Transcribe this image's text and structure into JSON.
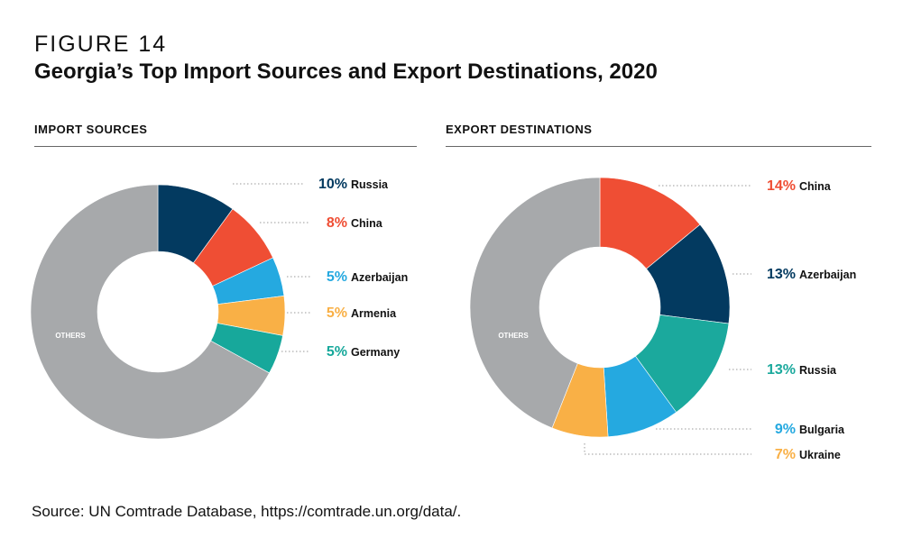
{
  "figure": {
    "label": "FIGURE 14",
    "title": "Georgia’s Top Import Sources and Export Destinations, 2020",
    "source": "Source: UN Comtrade Database, https://comtrade.un.org/data/."
  },
  "chart_data": [
    {
      "type": "pie",
      "variant": "donut",
      "title": "IMPORT SOURCES",
      "start": "top",
      "direction": "clockwise",
      "slices": [
        {
          "label": "Russia",
          "value": 10,
          "value_label": "10%",
          "color": "#033a60"
        },
        {
          "label": "China",
          "value": 8,
          "value_label": "8%",
          "color": "#ef4e34"
        },
        {
          "label": "Azerbaijan",
          "value": 5,
          "value_label": "5%",
          "color": "#25a9e0"
        },
        {
          "label": "Armenia",
          "value": 5,
          "value_label": "5%",
          "color": "#f9b046"
        },
        {
          "label": "Germany",
          "value": 5,
          "value_label": "5%",
          "color": "#17a89b"
        },
        {
          "label": "OTHERS",
          "value": 67,
          "value_label": "",
          "color": "#a7a9ab"
        }
      ]
    },
    {
      "type": "pie",
      "variant": "donut",
      "title": "EXPORT DESTINATIONS",
      "start": "top",
      "direction": "clockwise",
      "slices": [
        {
          "label": "China",
          "value": 14,
          "value_label": "14%",
          "color": "#ef4e34"
        },
        {
          "label": "Azerbaijan",
          "value": 13,
          "value_label": "13%",
          "color": "#033a60"
        },
        {
          "label": "Russia",
          "value": 13,
          "value_label": "13%",
          "color": "#1ba99d"
        },
        {
          "label": "Bulgaria",
          "value": 9,
          "value_label": "9%",
          "color": "#25a9e0"
        },
        {
          "label": "Ukraine",
          "value": 7,
          "value_label": "7%",
          "color": "#f9b046"
        },
        {
          "label": "OTHERS",
          "value": 44,
          "value_label": "",
          "color": "#a7a9ab"
        }
      ]
    }
  ]
}
